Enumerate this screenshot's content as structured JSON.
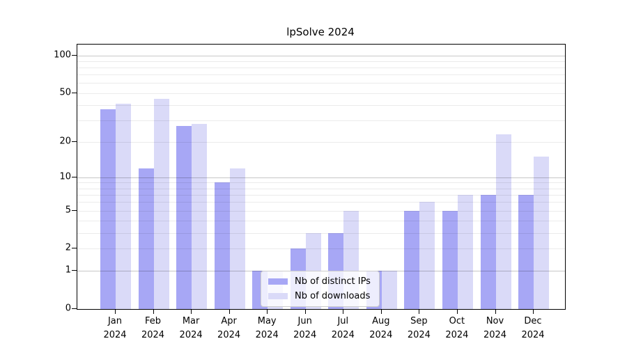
{
  "chart_data": {
    "type": "bar",
    "title": "lpSolve 2024",
    "scale": "log1p",
    "ylim": [
      0,
      122
    ],
    "yticks": [
      0,
      1,
      2,
      5,
      10,
      20,
      50,
      100
    ],
    "major_gridlines": [
      1,
      10,
      100
    ],
    "grid": true,
    "legend_position": "lower center",
    "categories": [
      "Jan 2024",
      "Feb 2024",
      "Mar 2024",
      "Apr 2024",
      "May 2024",
      "Jun 2024",
      "Jul 2024",
      "Aug 2024",
      "Sep 2024",
      "Oct 2024",
      "Nov 2024",
      "Dec 2024"
    ],
    "series": [
      {
        "name": "Nb of distinct IPs",
        "color": "#a7a7f5",
        "values": [
          37,
          12,
          27,
          9,
          1,
          2,
          3,
          1,
          5,
          5,
          7,
          7
        ]
      },
      {
        "name": "Nb of downloads",
        "color": "#dadaf8",
        "values": [
          41,
          45,
          28,
          12,
          1,
          3,
          5,
          1,
          6,
          7,
          23,
          15
        ]
      }
    ]
  }
}
